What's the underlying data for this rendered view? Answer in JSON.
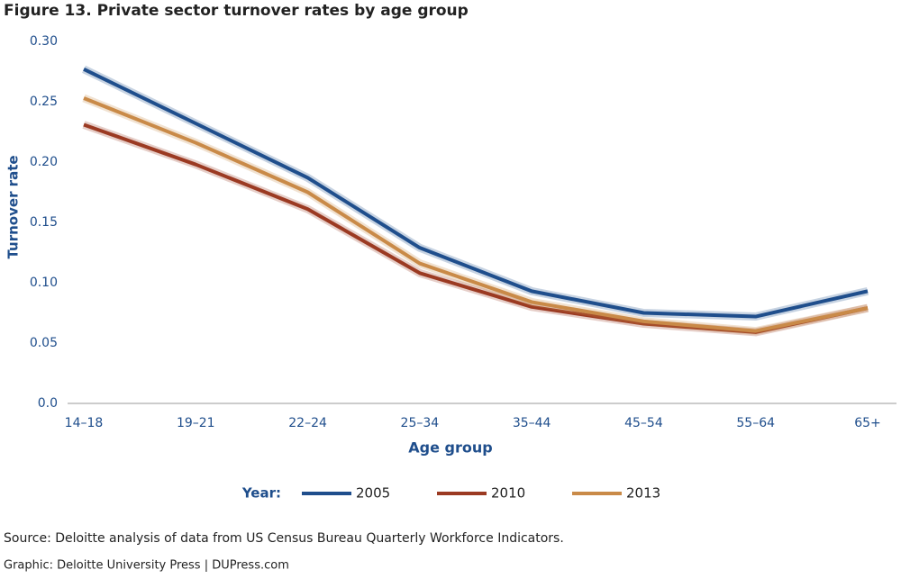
{
  "chart_data": {
    "type": "line",
    "title": "Figure 13. Private sector turnover rates by age group",
    "x_label": "Age group",
    "y_label": "Turnover rate",
    "legend_title": "Year:",
    "categories": [
      "14–18",
      "19–21",
      "22–24",
      "25–34",
      "35–44",
      "45–54",
      "55–64",
      "65+"
    ],
    "series": [
      {
        "name": "2005",
        "color": "#1f4e8c",
        "values": [
          0.277,
          0.232,
          0.187,
          0.129,
          0.093,
          0.075,
          0.072,
          0.093
        ]
      },
      {
        "name": "2010",
        "color": "#9b3a22",
        "values": [
          0.231,
          0.198,
          0.161,
          0.108,
          0.08,
          0.066,
          0.059,
          0.079
        ]
      },
      {
        "name": "2013",
        "color": "#c98a48",
        "values": [
          0.253,
          0.216,
          0.175,
          0.116,
          0.084,
          0.068,
          0.06,
          0.079
        ]
      }
    ],
    "ylim": [
      0,
      0.3
    ],
    "yticks": [
      {
        "value": 0,
        "label": "0.0"
      },
      0.05,
      {
        "value": 0.1,
        "label": "0.10"
      },
      0.15,
      {
        "value": 0.2,
        "label": "0.20"
      },
      0.25,
      {
        "value": 0.3,
        "label": "0.30"
      }
    ],
    "grid": false,
    "source": "Source: Deloitte analysis of data from US Census Bureau Quarterly Workforce Indicators.",
    "credit": "Graphic: Deloitte University Press | DUPress.com"
  }
}
